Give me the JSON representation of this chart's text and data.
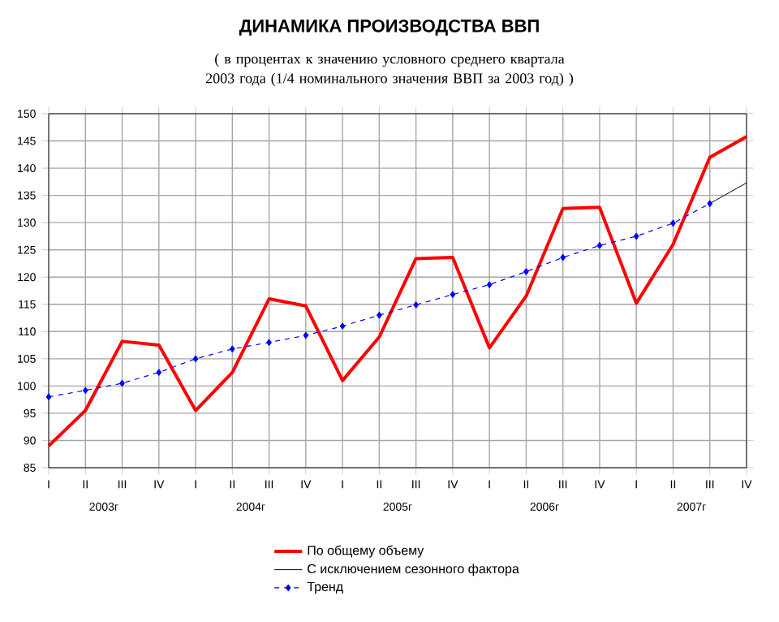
{
  "chart_data": {
    "type": "line",
    "title": "ДИНАМИКА ПРОИЗВОДСТВА ВВП",
    "subtitle": "( в процентах к значению условного среднего квартала 2003 года (1/4 номинального значения ВВП за 2003 год) )",
    "categories": [
      "I",
      "II",
      "III",
      "IV",
      "I",
      "II",
      "III",
      "IV",
      "I",
      "II",
      "III",
      "IV",
      "I",
      "II",
      "III",
      "IV",
      "I",
      "II",
      "III",
      "IV"
    ],
    "annotations": [
      "2003г",
      "2004г",
      "2005г",
      "2006г",
      "2007г"
    ],
    "series": [
      {
        "name": "По общему объему",
        "color": "#ff0000",
        "marker": "none",
        "line_style": "solid",
        "values": [
          89,
          95.5,
          108.2,
          107.5,
          95.5,
          102.5,
          116,
          114.7,
          101,
          109,
          123.4,
          123.6,
          107,
          116.5,
          132.6,
          132.8,
          115.2,
          126,
          142,
          145.8
        ]
      },
      {
        "name": "С исключением сезонного фактора",
        "color": "#000000",
        "marker": "none",
        "line_style": "solid",
        "values": [
          null,
          null,
          null,
          null,
          null,
          null,
          null,
          null,
          null,
          null,
          null,
          null,
          null,
          null,
          null,
          null,
          null,
          null,
          133.5,
          137.3
        ]
      },
      {
        "name": "Тренд",
        "color": "#0000ff",
        "marker": "diamond",
        "line_style": "dashed",
        "values": [
          98,
          99.2,
          100.5,
          102.5,
          105,
          106.8,
          108,
          109.3,
          111,
          113,
          114.9,
          116.8,
          118.6,
          121,
          123.6,
          125.8,
          127.5,
          129.9,
          133.5,
          null
        ]
      }
    ],
    "ylim": [
      85,
      150
    ],
    "yticks": [
      85,
      90,
      95,
      100,
      105,
      110,
      115,
      120,
      125,
      130,
      135,
      140,
      145,
      150
    ],
    "grid": true,
    "legend": "bottom"
  }
}
